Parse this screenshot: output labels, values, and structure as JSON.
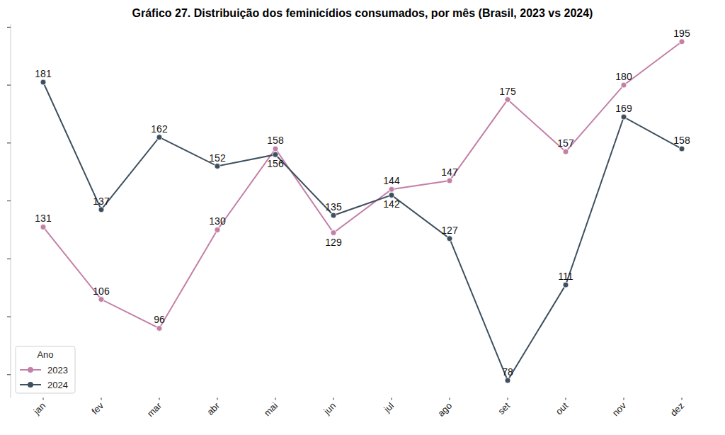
{
  "chart_data": {
    "type": "line",
    "title": "Gráfico 27. Distribuição dos feminicídios consumados, por mês (Brasil, 2023 vs 2024)",
    "categories": [
      "jan",
      "fev",
      "mar",
      "abr",
      "mai",
      "jun",
      "jul",
      "ago",
      "set",
      "out",
      "nov",
      "dez"
    ],
    "series": [
      {
        "name": "2023",
        "color": "#c47fa6",
        "marker": "circle",
        "line_style": "solid",
        "values": [
          131,
          106,
          96,
          130,
          158,
          129,
          144,
          147,
          175,
          157,
          180,
          195
        ]
      },
      {
        "name": "2024",
        "color": "#3e5060",
        "marker": "circle",
        "line_style": "solid",
        "values": [
          181,
          137,
          162,
          152,
          156,
          135,
          142,
          127,
          78,
          111,
          169,
          158
        ]
      }
    ],
    "ylim": [
      72,
      201
    ],
    "yticks": [
      80,
      100,
      120,
      140,
      160,
      180,
      200
    ],
    "tick_labels": "x",
    "grid": false,
    "data_labels": true,
    "legend": "lower left",
    "legend_title": "Ano"
  }
}
